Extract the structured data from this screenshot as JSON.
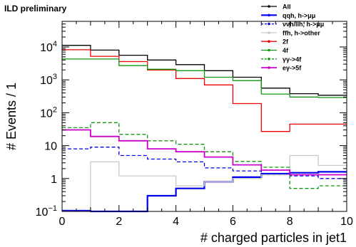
{
  "header": {
    "label": "ILD preliminary"
  },
  "chart_data": {
    "type": "line",
    "style": "step-histogram",
    "xlabel": "# charged particles in jet1",
    "ylabel": "# Events / 1",
    "xlim": [
      0,
      10
    ],
    "ylim": [
      0.1,
      60000
    ],
    "yscale": "log",
    "grid": false,
    "legend_position": "top-right",
    "x_ticks": [
      0,
      2,
      4,
      6,
      8,
      10
    ],
    "x_tick_labels": [
      "0",
      "2",
      "4",
      "6",
      "8",
      "10"
    ],
    "y_ticks": [
      0.1,
      1,
      10,
      100,
      1000,
      10000
    ],
    "y_tick_labels": [
      "10^-1",
      "1",
      "10",
      "10^2",
      "10^3",
      "10^4"
    ],
    "bin_edges": [
      0,
      1,
      2,
      3,
      4,
      5,
      6,
      7,
      8,
      9,
      10
    ],
    "series": [
      {
        "name": "All",
        "color": "#000000",
        "dash": "solid",
        "width": 1.3,
        "values": [
          11200,
          8000,
          5600,
          4000,
          2900,
          1900,
          1200,
          560,
          380,
          340
        ]
      },
      {
        "name": "qqh, h->μμ",
        "color": "#0000ee",
        "dash": "solid",
        "width": 2.2,
        "values": [
          0.105,
          0.095,
          0.085,
          0.3,
          0.5,
          0.8,
          1.1,
          1.4,
          1.5,
          1.6
        ]
      },
      {
        "name": "ννh/llh, h->μμ",
        "color": "#0000ee",
        "dash": "dashed",
        "width": 1.3,
        "values": [
          8,
          9,
          5,
          3.9,
          3.2,
          2.1,
          1.7,
          1.3,
          1.2,
          1.0
        ]
      },
      {
        "name": "ffh, h->other",
        "color": "#c8c8c8",
        "dash": "solid",
        "width": 1.3,
        "values": [
          0.1,
          3.2,
          1.2,
          1.2,
          0.6,
          0.8,
          1.0,
          1.3,
          5.0,
          2.5
        ]
      },
      {
        "name": "2f",
        "color": "#ee0000",
        "dash": "solid",
        "width": 1.3,
        "values": [
          8200,
          5200,
          3600,
          2000,
          1100,
          700,
          190,
          27,
          45,
          45
        ]
      },
      {
        "name": "4f",
        "color": "#119911",
        "dash": "solid",
        "width": 1.3,
        "values": [
          4300,
          4300,
          2700,
          2100,
          1900,
          1200,
          950,
          370,
          300,
          290
        ]
      },
      {
        "name": "γγ->4f",
        "color": "#119911",
        "dash": "dashed",
        "width": 1.3,
        "values": [
          35,
          50,
          22,
          14,
          11,
          6.5,
          3.3,
          2.2,
          0.5,
          0.6
        ]
      },
      {
        "name": "eγ->5f",
        "color": "#cc00cc",
        "dash": "solid",
        "width": 1.8,
        "values": [
          30,
          19,
          14,
          8,
          6.5,
          4.5,
          2.6,
          1.8,
          1.3,
          1.3
        ]
      }
    ]
  }
}
